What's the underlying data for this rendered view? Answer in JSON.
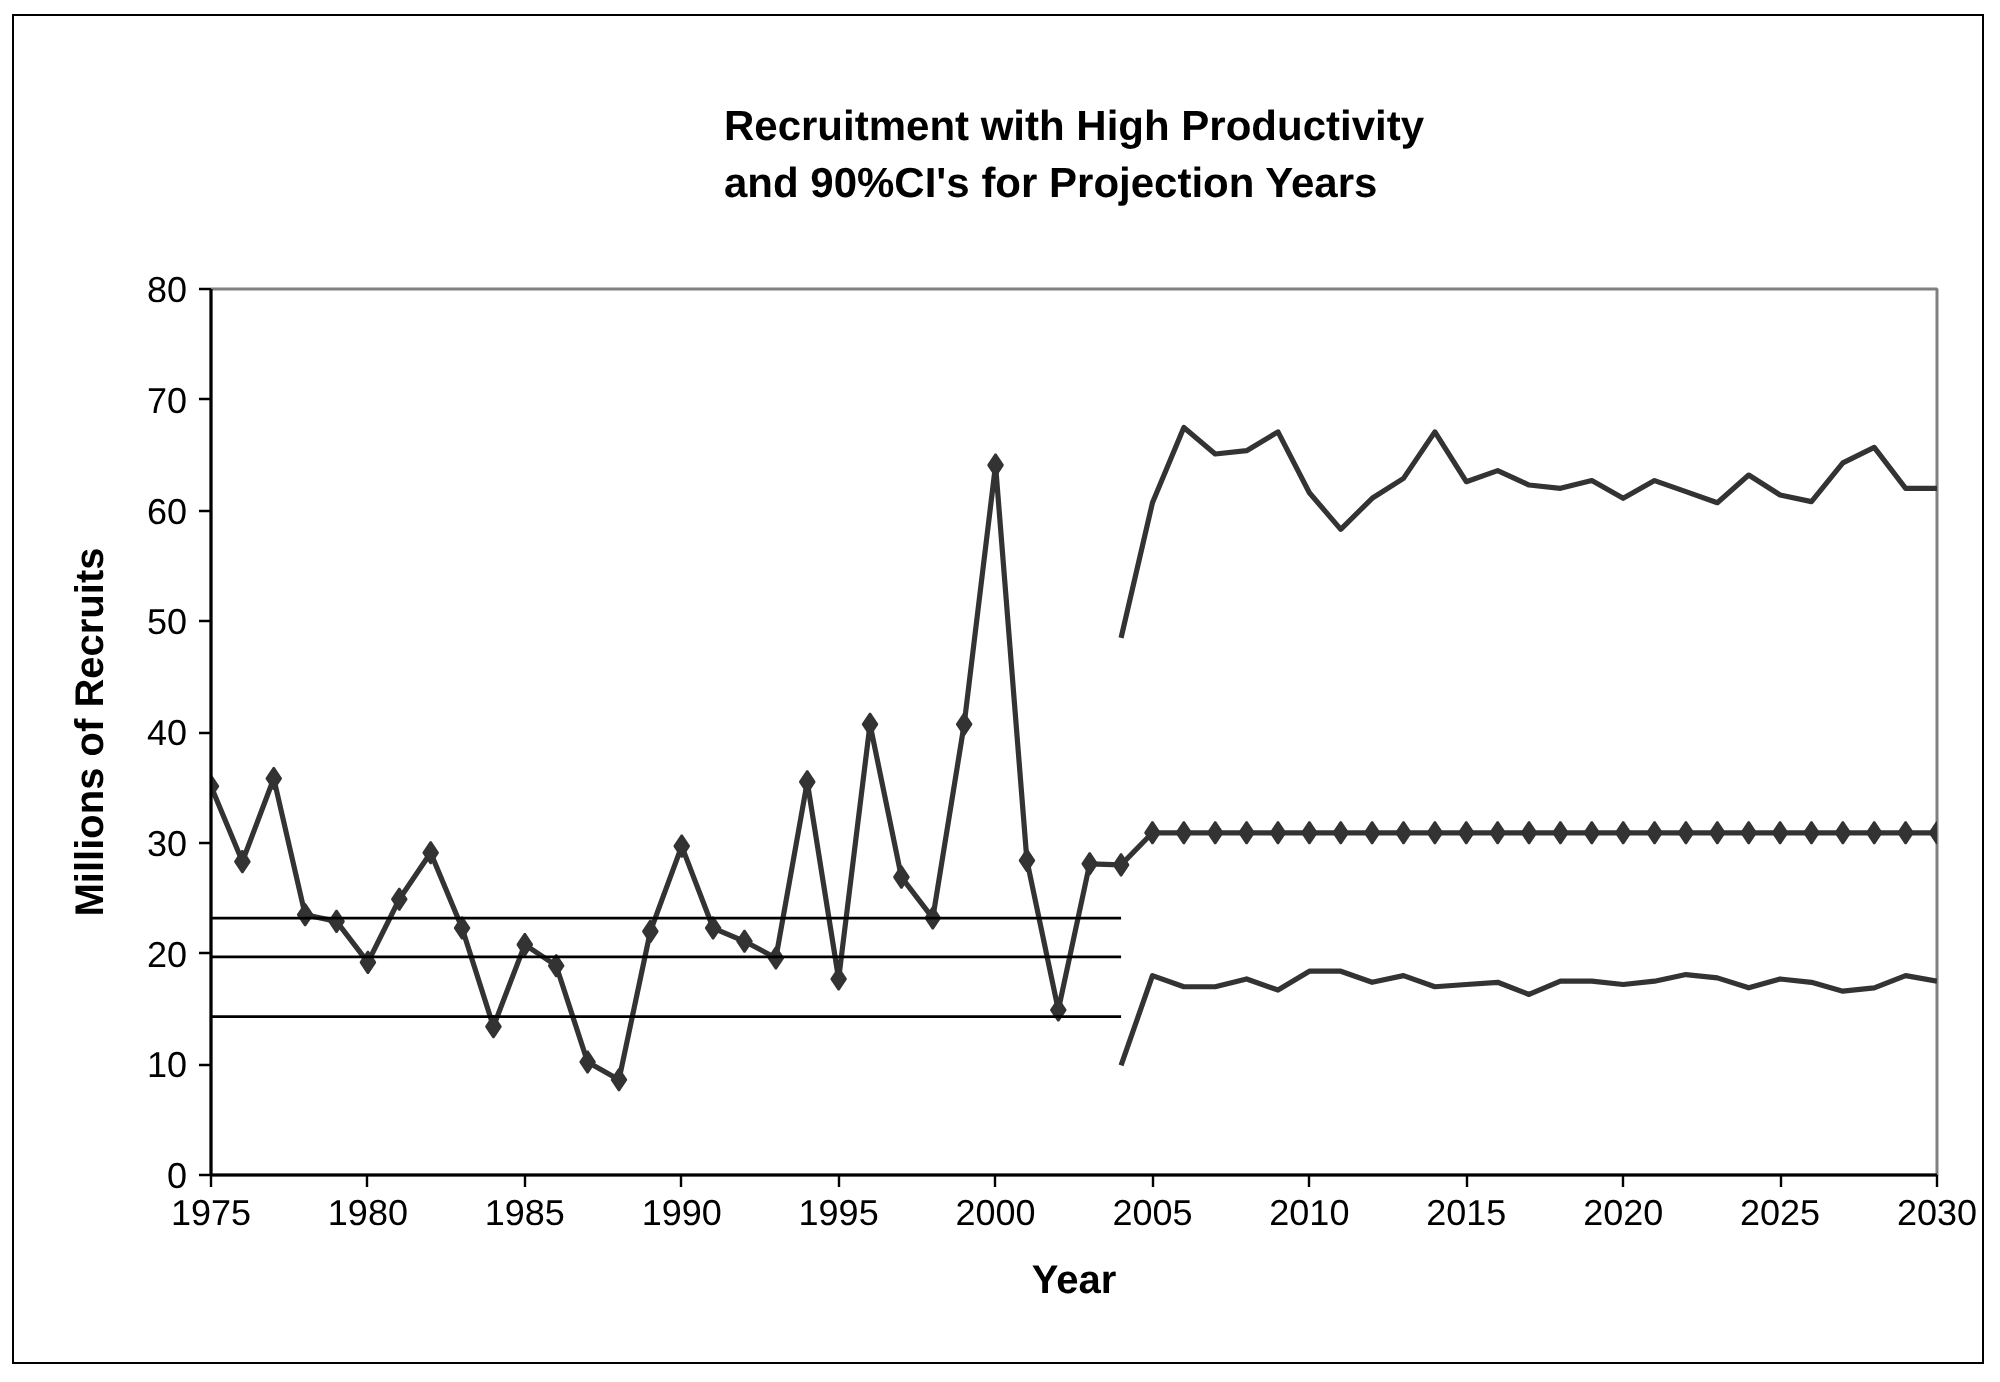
{
  "chart_data": {
    "type": "line",
    "title": "Recruitment with High Productivity\nand 90%CI's for Projection Years",
    "xlabel": "Year",
    "ylabel": "Millions of Recruits",
    "xlim": [
      1975,
      2030
    ],
    "xticks": [
      1975,
      1980,
      1985,
      1990,
      1995,
      2000,
      2005,
      2010,
      2015,
      2020,
      2025,
      2030
    ],
    "ylim": [
      0,
      80
    ],
    "yticks": [
      0,
      10,
      20,
      30,
      40,
      50,
      60,
      70,
      80
    ],
    "grid": false,
    "marker": "diamond",
    "line_style": "solid",
    "series": [
      {
        "color": "#333333",
        "x": [
          1975,
          1976,
          1977,
          1978,
          1979,
          1980,
          1981,
          1982,
          1983,
          1984,
          1985,
          1986,
          1987,
          1988,
          1989,
          1990,
          1991,
          1992,
          1993,
          1994,
          1995,
          1996,
          1997,
          1998,
          1999,
          2000,
          2001,
          2002,
          2003,
          2004,
          2005,
          2006,
          2007,
          2008,
          2009,
          2010,
          2011,
          2012,
          2013,
          2014,
          2015,
          2016,
          2017,
          2018,
          2019,
          2020,
          2021,
          2022,
          2023,
          2024,
          2025,
          2026,
          2027,
          2028,
          2029,
          2030
        ],
        "values": [
          35.1,
          28.3,
          35.8,
          23.5,
          22.9,
          19.2,
          24.9,
          29.1,
          22.3,
          13.4,
          20.8,
          18.9,
          10.2,
          8.6,
          22.0,
          29.7,
          22.3,
          21.1,
          19.6,
          35.5,
          17.7,
          40.7,
          26.9,
          23.2,
          40.7,
          64.1,
          28.4,
          14.9,
          28.1,
          28.0,
          30.9,
          30.9,
          30.9,
          30.9,
          30.9,
          30.9,
          30.9,
          30.9,
          30.9,
          30.9,
          30.9,
          30.9,
          30.9,
          30.9,
          30.9,
          30.9,
          30.9,
          30.9,
          30.9,
          30.9,
          30.9,
          30.9,
          30.9,
          30.9,
          30.9,
          30.9
        ]
      },
      {
        "color": "#333333",
        "marker": "none",
        "x": [
          2004,
          2005,
          2006,
          2007,
          2008,
          2009,
          2010,
          2011,
          2012,
          2013,
          2014,
          2015,
          2016,
          2017,
          2018,
          2019,
          2020,
          2021,
          2022,
          2023,
          2024,
          2025,
          2026,
          2027,
          2028,
          2029,
          2030
        ],
        "values": [
          48.5,
          60.7,
          67.5,
          65.1,
          65.4,
          67.1,
          61.6,
          58.3,
          61.1,
          62.9,
          67.1,
          62.6,
          63.6,
          62.3,
          62.0,
          62.7,
          61.1,
          62.7,
          61.7,
          60.7,
          63.2,
          61.4,
          60.8,
          64.3,
          65.7,
          62.0,
          62.0
        ]
      },
      {
        "color": "#333333",
        "marker": "none",
        "x": [
          2004,
          2005,
          2006,
          2007,
          2008,
          2009,
          2010,
          2011,
          2012,
          2013,
          2014,
          2015,
          2016,
          2017,
          2018,
          2019,
          2020,
          2021,
          2022,
          2023,
          2024,
          2025,
          2026,
          2027,
          2028,
          2029,
          2030
        ],
        "values": [
          9.9,
          18.0,
          17.0,
          17.0,
          17.7,
          16.7,
          18.4,
          18.4,
          17.4,
          18.0,
          17.0,
          17.2,
          17.4,
          16.3,
          17.5,
          17.5,
          17.2,
          17.5,
          18.1,
          17.8,
          16.9,
          17.7,
          17.4,
          16.6,
          16.9,
          18.0,
          17.5
        ]
      },
      {
        "color": "#000000",
        "marker": "none",
        "x": [
          1975,
          2004
        ],
        "values": [
          23.2,
          23.2
        ]
      },
      {
        "color": "#000000",
        "marker": "none",
        "x": [
          1975,
          2004
        ],
        "values": [
          19.7,
          19.7
        ]
      },
      {
        "color": "#000000",
        "marker": "none",
        "x": [
          1975,
          2004
        ],
        "values": [
          14.3,
          14.3
        ]
      }
    ]
  }
}
